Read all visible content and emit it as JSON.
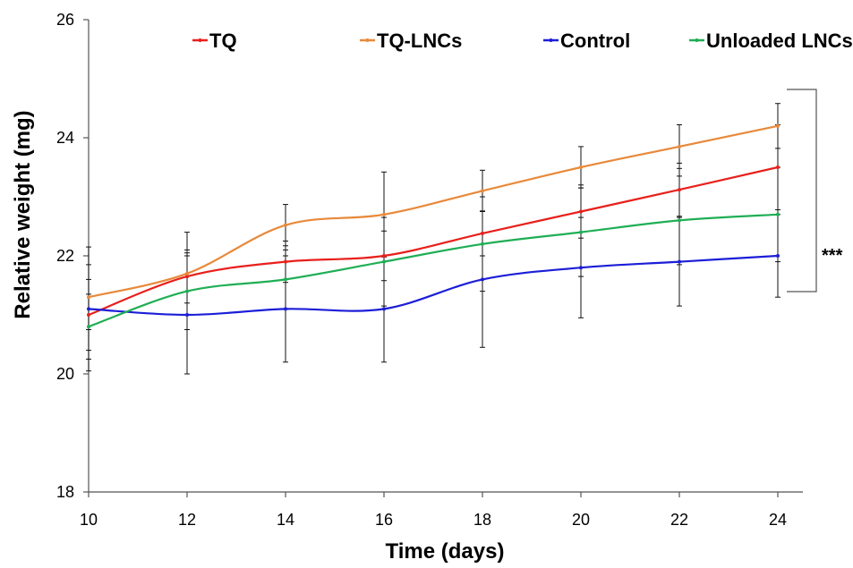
{
  "chart_data": {
    "type": "line",
    "xlabel": "Time (days)",
    "ylabel": "Relative weight (mg)",
    "xlim": [
      10,
      24
    ],
    "ylim": [
      18,
      26
    ],
    "x_ticks": [
      "10",
      "12",
      "14",
      "16",
      "18",
      "20",
      "22",
      "24"
    ],
    "y_ticks": [
      "18",
      "20",
      "22",
      "24",
      "26"
    ],
    "grid": false,
    "legend_position": "top",
    "x": [
      10,
      12,
      14,
      16,
      18,
      20,
      22,
      24
    ],
    "series": [
      {
        "name": "TQ",
        "color": "#e8201c",
        "values": [
          21.0,
          21.65,
          21.9,
          22.0,
          22.38,
          22.75,
          23.12,
          23.5
        ],
        "errors": [
          0.6,
          0.45,
          0.35,
          0.42,
          0.38,
          0.45,
          0.45,
          0.72
        ]
      },
      {
        "name": "TQ-LNCs",
        "color": "#e8893a",
        "values": [
          21.3,
          21.7,
          22.52,
          22.7,
          23.1,
          23.5,
          23.85,
          24.2
        ],
        "errors": [
          0.55,
          0.7,
          0.35,
          0.72,
          0.35,
          0.35,
          0.37,
          0.38
        ]
      },
      {
        "name": "Control",
        "color": "#1c1ed8",
        "values": [
          21.1,
          21.0,
          21.1,
          21.1,
          21.6,
          21.8,
          21.9,
          22.0
        ],
        "errors": [
          1.05,
          1.0,
          0.9,
          0.9,
          1.15,
          0.85,
          0.75,
          0.7
        ]
      },
      {
        "name": "Unloaded LNCs",
        "color": "#1fae55",
        "values": [
          20.8,
          21.4,
          21.6,
          21.9,
          22.2,
          22.4,
          22.6,
          22.7
        ],
        "errors": [
          0.55,
          0.65,
          0.5,
          0.75,
          0.8,
          0.75,
          0.75,
          0.8
        ]
      }
    ],
    "annotation": "***"
  }
}
